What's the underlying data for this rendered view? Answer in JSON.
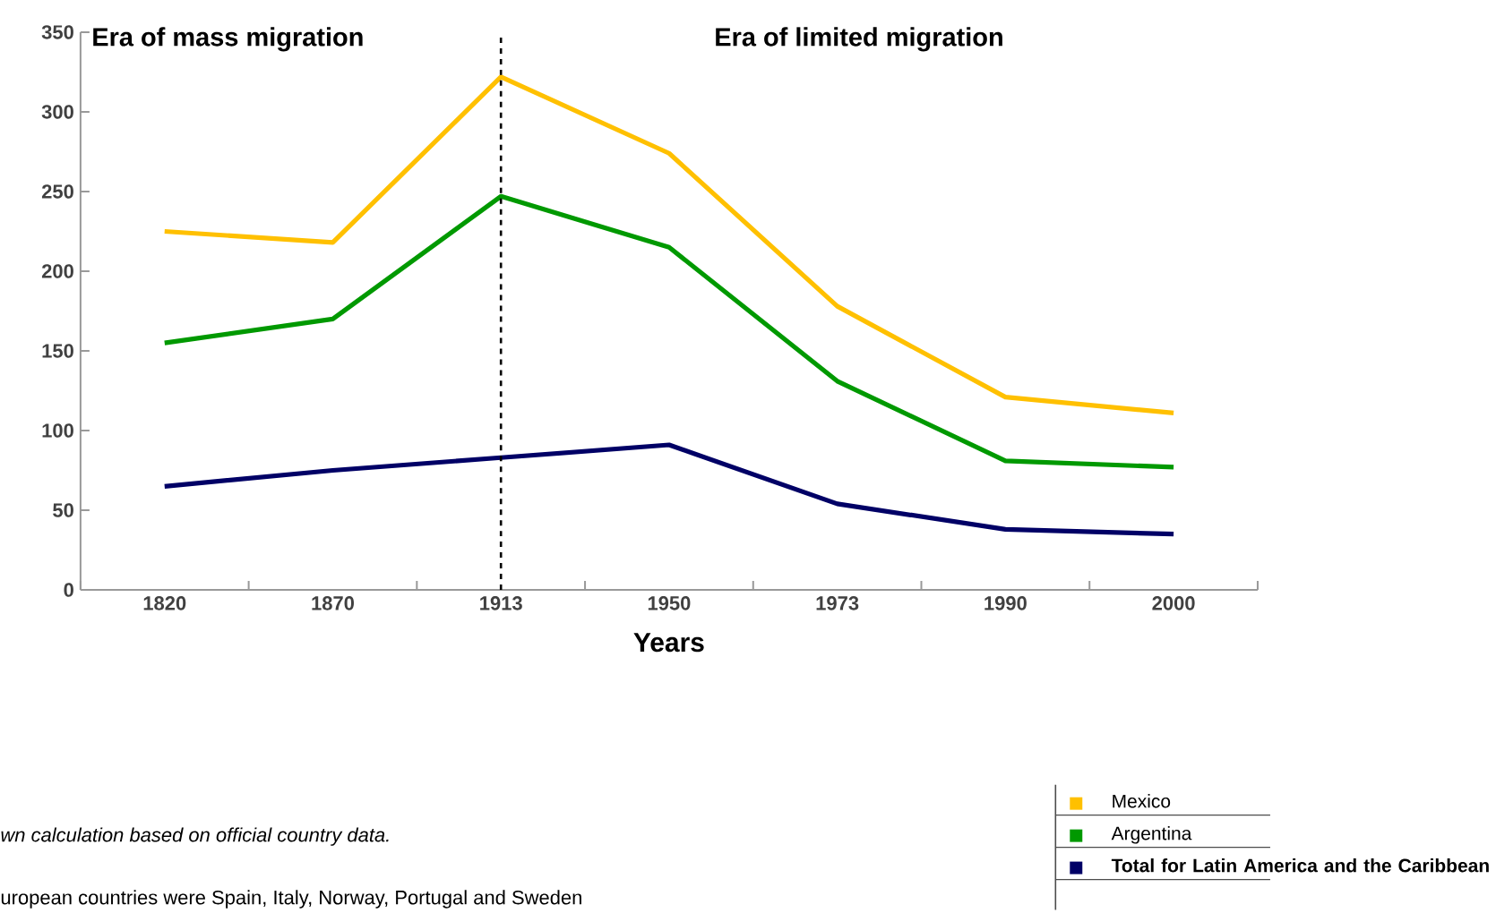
{
  "chart_data": {
    "type": "line",
    "xlabel": "Years",
    "categories": [
      "1820",
      "1870",
      "1913",
      "1950",
      "1973",
      "1990",
      "2000"
    ],
    "series": [
      {
        "name": "Mexico",
        "color": "#ffc000",
        "values": [
          225,
          218,
          322,
          274,
          178,
          121,
          111
        ]
      },
      {
        "name": "Argentina",
        "color": "#009900",
        "values": [
          155,
          170,
          247,
          215,
          131,
          81,
          77
        ]
      },
      {
        "name": "Total for Latin America and the Caribbean",
        "color": "#000066",
        "values": [
          65,
          75,
          83,
          91,
          54,
          38,
          35
        ]
      }
    ],
    "ylim": [
      0,
      350
    ],
    "yticks": [
      0,
      50,
      100,
      150,
      200,
      250,
      300,
      350
    ],
    "ref_lines": [
      {
        "axis": "x",
        "value": "1913",
        "color": "#000000",
        "line_style": "dashed"
      }
    ],
    "annotations": [
      "Era of mass migration",
      "Era of limited migration",
      "wn calculation based on official country data.",
      "uropean countries were Spain, Italy, Norway, Portugal and Sweden"
    ],
    "legend": "bottom right",
    "grid": false,
    "marker": "none",
    "line_style": "solid"
  }
}
